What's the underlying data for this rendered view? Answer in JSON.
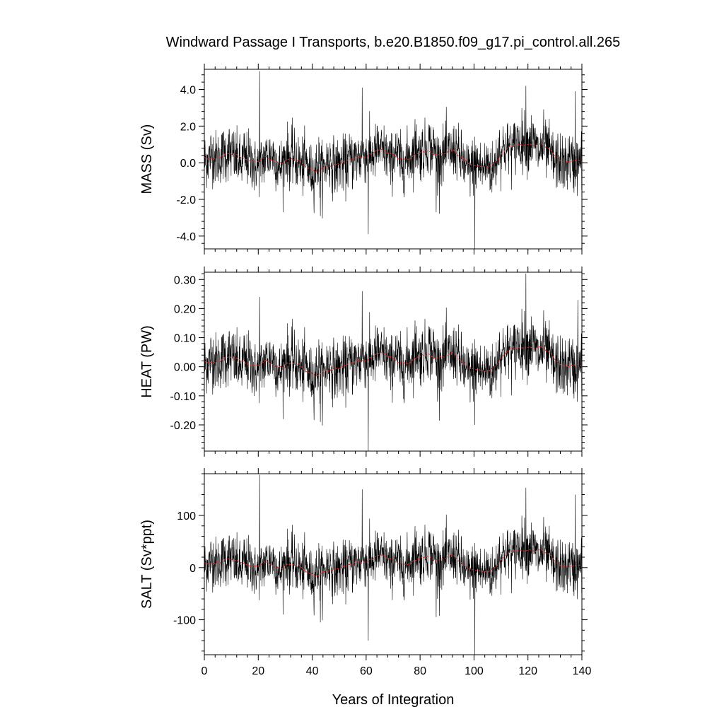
{
  "title": "Windward Passage I Transports, b.e20.B1850.f09_g17.pi_control.all.265",
  "chart_data": [
    {
      "type": "line",
      "ylabel": "MASS (Sv)",
      "xlabel": "",
      "xlim": [
        0,
        140
      ],
      "ylim": [
        -4.7,
        5.1
      ],
      "yticks": [
        4.0,
        2.0,
        0.0,
        -2.0,
        -4.0
      ],
      "ytick_labels": [
        "4.0",
        "2.0",
        "0.0",
        "-2.0",
        "-4.0"
      ],
      "xticks": [
        0,
        20,
        40,
        60,
        80,
        100,
        120,
        140
      ],
      "xtick_labels": [],
      "amplitude": 0.9,
      "spikes": [
        [
          20.5,
          5.0
        ],
        [
          58.5,
          4.1
        ],
        [
          60.8,
          -3.9
        ],
        [
          100.3,
          -4.7
        ],
        [
          119.2,
          4.2
        ],
        [
          137.5,
          3.9
        ],
        [
          43,
          -2.9
        ],
        [
          86,
          -2.7
        ]
      ],
      "series": [
        {
          "name": "",
          "color": "#000000",
          "role": "monthly"
        },
        {
          "name": "",
          "color": "#e03030",
          "role": "smoothed"
        }
      ]
    },
    {
      "type": "line",
      "ylabel": "HEAT (PW)",
      "xlabel": "",
      "xlim": [
        0,
        140
      ],
      "ylim": [
        -0.29,
        0.325
      ],
      "yticks": [
        0.3,
        0.2,
        0.1,
        0.0,
        -0.1,
        -0.2
      ],
      "ytick_labels": [
        "0.30",
        "0.20",
        "0.10",
        "0.00",
        "-0.10",
        "-0.20"
      ],
      "xticks": [
        0,
        20,
        40,
        60,
        80,
        100,
        120,
        140
      ],
      "xtick_labels": [],
      "amplitude": 0.06,
      "spikes": [
        [
          58.5,
          0.26
        ],
        [
          60.8,
          -0.29
        ],
        [
          100.3,
          -0.2
        ],
        [
          119.2,
          0.32
        ],
        [
          20.5,
          0.24
        ],
        [
          43,
          -0.19
        ],
        [
          138.5,
          0.23
        ]
      ],
      "series": [
        {
          "name": "",
          "color": "#000000",
          "role": "monthly"
        },
        {
          "name": "",
          "color": "#e03030",
          "role": "smoothed"
        }
      ]
    },
    {
      "type": "line",
      "ylabel": "SALT (Sv*ppt)",
      "xlabel": "Years of Integration",
      "xlim": [
        0,
        140
      ],
      "ylim": [
        -167,
        180
      ],
      "yticks": [
        100,
        0,
        -100
      ],
      "ytick_labels": [
        "100",
        "0",
        "-100"
      ],
      "xticks": [
        0,
        20,
        40,
        60,
        80,
        100,
        120,
        140
      ],
      "xtick_labels": [
        "0",
        "20",
        "40",
        "60",
        "80",
        "100",
        "120",
        "140"
      ],
      "amplitude": 30,
      "spikes": [
        [
          20.5,
          178
        ],
        [
          58.5,
          150
        ],
        [
          60.8,
          -140
        ],
        [
          100.3,
          -167
        ],
        [
          119.2,
          153
        ],
        [
          137.5,
          140
        ],
        [
          43,
          -105
        ],
        [
          86,
          -95
        ]
      ],
      "series": [
        {
          "name": "",
          "color": "#000000",
          "role": "monthly"
        },
        {
          "name": "",
          "color": "#e03030",
          "role": "smoothed"
        }
      ]
    }
  ]
}
